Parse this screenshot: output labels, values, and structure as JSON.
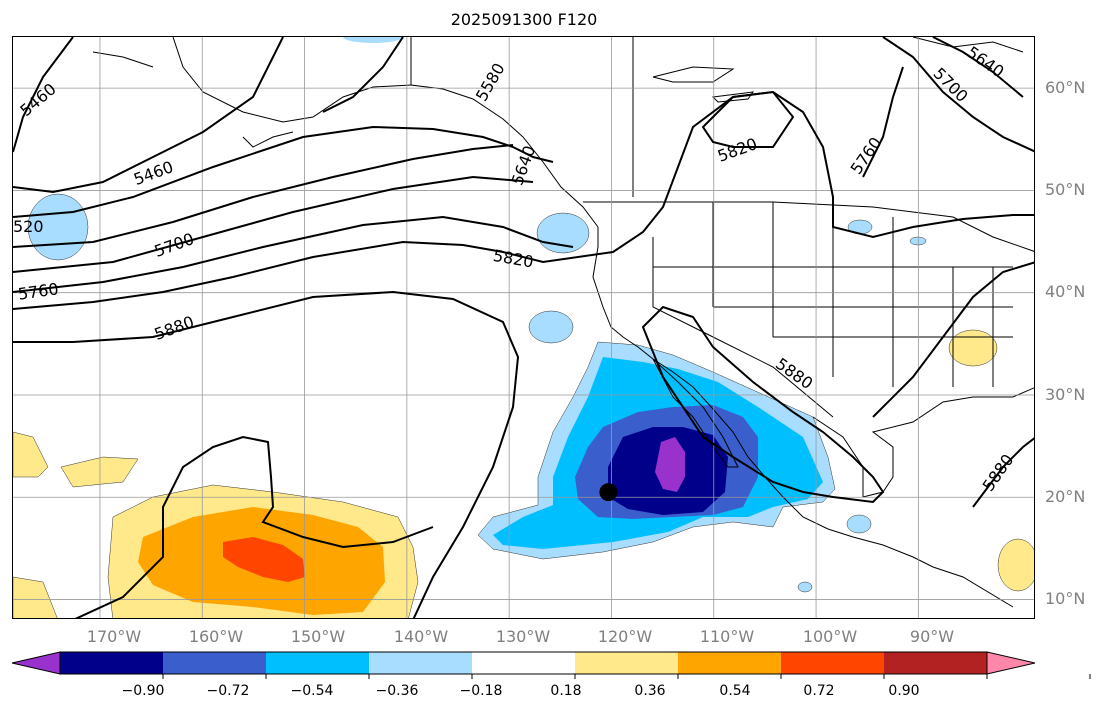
{
  "title": "2025091300 F120",
  "lat_labels": [
    {
      "text": "60°N",
      "lat": 60
    },
    {
      "text": "50°N",
      "lat": 50
    },
    {
      "text": "40°N",
      "lat": 40
    },
    {
      "text": "30°N",
      "lat": 30
    },
    {
      "text": "20°N",
      "lat": 20
    },
    {
      "text": "10°N",
      "lat": 10
    }
  ],
  "lon_labels": [
    {
      "text": "170°W",
      "lon": -170
    },
    {
      "text": "160°W",
      "lon": -160
    },
    {
      "text": "150°W",
      "lon": -150
    },
    {
      "text": "140°W",
      "lon": -140
    },
    {
      "text": "130°W",
      "lon": -130
    },
    {
      "text": "120°W",
      "lon": -120
    },
    {
      "text": "110°W",
      "lon": -110
    },
    {
      "text": "100°W",
      "lon": -100
    },
    {
      "text": "90°W",
      "lon": -90
    }
  ],
  "contour_labels": [
    "5460",
    "5460",
    "5580",
    "5640",
    "5640",
    "5700",
    "5700",
    "5760",
    "5760",
    "5820",
    "5820",
    "5880",
    "5880",
    "5880",
    "520"
  ],
  "colorbar": {
    "ticks": [
      "−0.90",
      "−0.72",
      "−0.54",
      "−0.36",
      "−0.18",
      "0.18",
      "0.36",
      "0.54",
      "0.72",
      "0.90"
    ],
    "colors": [
      "#9932cc",
      "#00008b",
      "#3a5fcd",
      "#00bfff",
      "#a8ddff",
      "#ffffff",
      "#ffe98a",
      "#ffa500",
      "#ff4500",
      "#b22222",
      "#ff88aa"
    ]
  },
  "storm_center": {
    "lat": 20.5,
    "lon": -120.3
  }
}
